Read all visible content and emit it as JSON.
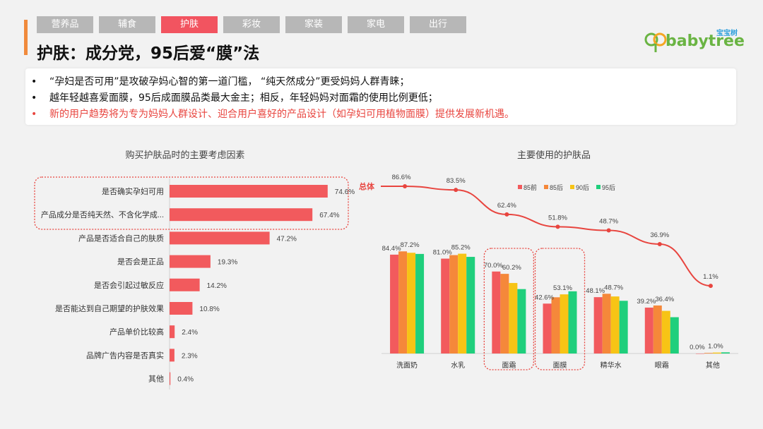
{
  "tabs": [
    "营养品",
    "辅食",
    "护肤",
    "彩妆",
    "家装",
    "家电",
    "出行"
  ],
  "active_tab": 2,
  "title": "护肤：成分党，95后爱“膜”法",
  "logo": {
    "text": "babytree",
    "cn": "宝宝树"
  },
  "bullets": [
    {
      "text": "“孕妇是否可用”是攻破孕妈心智的第一道门槛， “纯天然成分”更受妈妈人群青睐；",
      "highlight": false
    },
    {
      "text": "越年轻越喜爱面膜，95后成面膜品类最大金主；相反，年轻妈妈对面霜的使用比例更低；",
      "highlight": false
    },
    {
      "text": "新的用户趋势将为专为妈妈人群设计、迎合用户喜好的产品设计（如孕妇可用植物面膜）提供发展新机遇。",
      "highlight": true
    }
  ],
  "colors": {
    "bar": "#f25a5d",
    "s85pre": "#f25a5d",
    "s85": "#f5883a",
    "s90": "#f7c415",
    "s95": "#1fcf7c",
    "total": "#e8453f"
  },
  "chart_data": [
    {
      "type": "bar",
      "orientation": "horizontal",
      "title": "购买护肤品时的主要考虑因素",
      "categories": [
        "是否确实孕妇可用",
        "产品成分是否纯天然、不含化学成...",
        "产品是否适合自己的肤质",
        "是否会是正品",
        "是否会引起过敏反应",
        "是否能达到自己期望的护肤效果",
        "产品单价比较高",
        "品牌广告内容是否真实",
        "其他"
      ],
      "values": [
        74.6,
        67.4,
        47.2,
        19.3,
        14.2,
        10.8,
        2.4,
        2.3,
        0.4
      ],
      "labels": [
        "74.6%",
        "67.4%",
        "47.2%",
        "19.3%",
        "14.2%",
        "10.8%",
        "2.4%",
        "2.3%",
        "0.4%"
      ],
      "xlim": [
        0,
        80
      ]
    },
    {
      "type": "bar",
      "title": "主要使用的护肤品",
      "categories": [
        "洗面奶",
        "水乳",
        "面霜",
        "面膜",
        "精华水",
        "眼霜",
        "其他"
      ],
      "series": [
        {
          "name": "85前",
          "values": [
            84.4,
            81.0,
            70.0,
            42.6,
            48.1,
            39.2,
            0.0
          ]
        },
        {
          "name": "85后",
          "values": [
            87.2,
            84.0,
            68.0,
            48.0,
            51.0,
            41.0,
            0.5
          ]
        },
        {
          "name": "90后",
          "values": [
            86.0,
            85.2,
            60.2,
            50.5,
            48.7,
            36.4,
            0.8
          ]
        },
        {
          "name": "95后",
          "values": [
            85.0,
            82.5,
            55.0,
            53.1,
            45.0,
            31.0,
            1.0
          ]
        }
      ],
      "bar_labels": [
        [
          "84.4%",
          "87.2%"
        ],
        [
          "81.0%",
          "85.2%"
        ],
        [
          "70.0%",
          "60.2%"
        ],
        [
          "42.6%",
          "53.1%"
        ],
        [
          "48.1%",
          "48.7%"
        ],
        [
          "39.2%",
          "36.4%"
        ],
        [
          "0.0%",
          "1.0%"
        ]
      ],
      "total": {
        "name": "总体",
        "values": [
          86.6,
          83.5,
          62.4,
          51.8,
          48.7,
          36.9,
          1.1
        ],
        "labels": [
          "86.6%",
          "83.5%",
          "62.4%",
          "51.8%",
          "48.7%",
          "36.9%",
          "1.1%"
        ]
      },
      "highlight_categories": [
        "面霜",
        "面膜"
      ],
      "ylim": [
        0,
        100
      ]
    }
  ]
}
